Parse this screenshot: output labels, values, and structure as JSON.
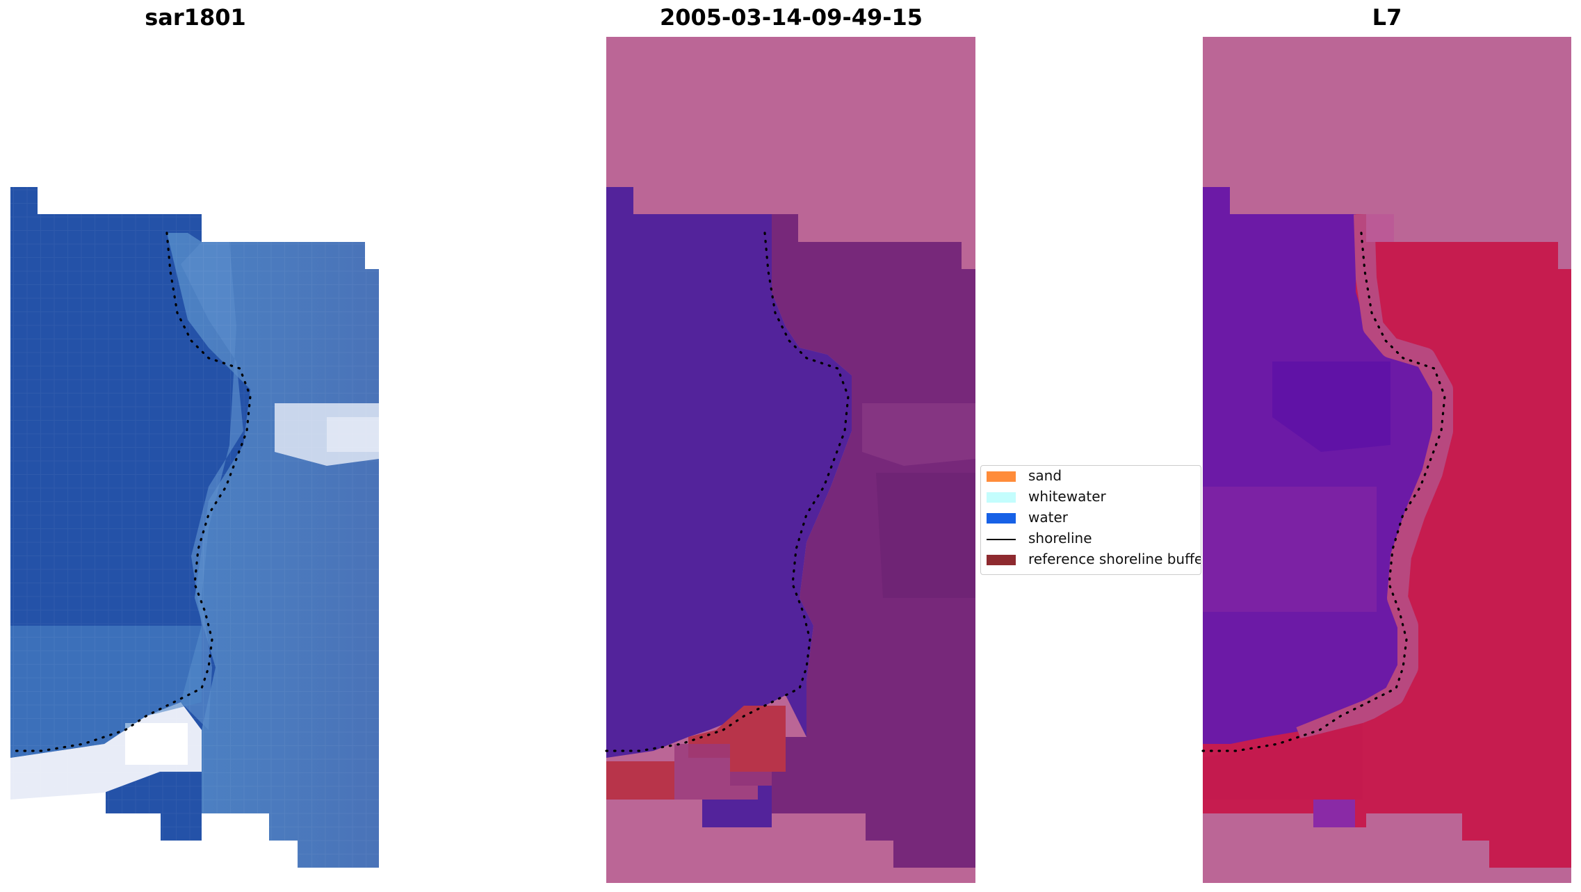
{
  "panels": [
    {
      "title": "sar1801"
    },
    {
      "title": "2005-03-14-09-49-15"
    },
    {
      "title": "L7"
    }
  ],
  "legend": {
    "items": [
      {
        "label": "sand",
        "color": "#ff8c3a",
        "kind": "patch"
      },
      {
        "label": "whitewater",
        "color": "#c4fdfd",
        "kind": "patch"
      },
      {
        "label": "water",
        "color": "#1761e6",
        "kind": "patch"
      },
      {
        "label": "shoreline",
        "color": "#000000",
        "kind": "line"
      },
      {
        "label": "reference shoreline buffer",
        "color": "#8e2a2f",
        "kind": "patch"
      }
    ]
  },
  "colors": {
    "water_class_overlay": "#53239b",
    "land_overlay": "#7a2a7a",
    "reference_buffer_overlay": "#b8344a",
    "nodata_mask": "#bb6696",
    "index_low": "#6a1aa8",
    "index_high": "#c5093f",
    "shoreline_dots": "#000000"
  }
}
